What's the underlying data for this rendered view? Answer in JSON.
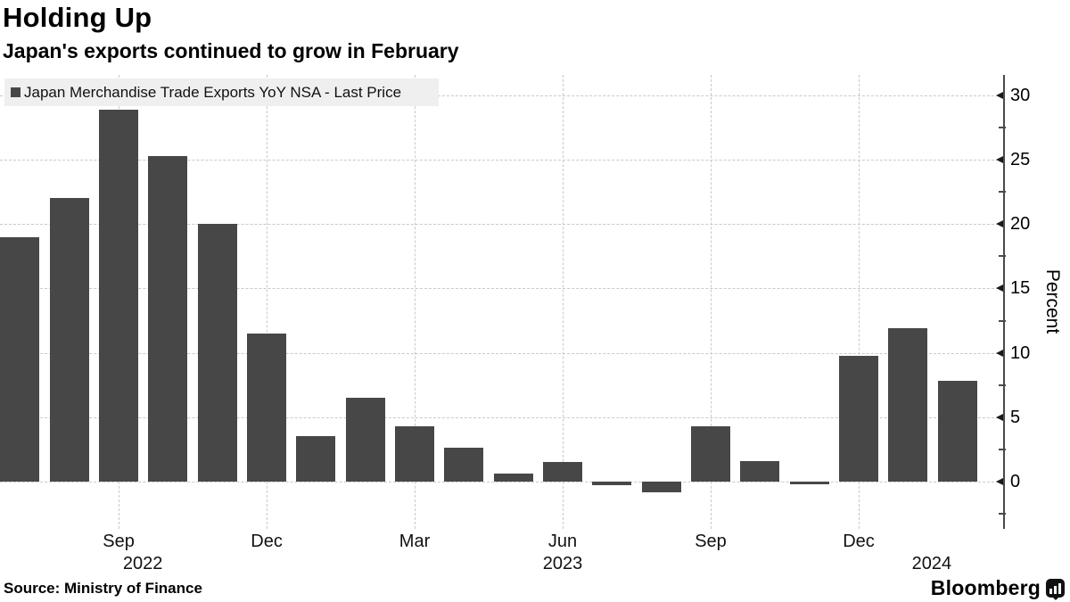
{
  "header": {
    "title": "Holding Up",
    "subtitle": "Japan's exports continued to grow in February"
  },
  "legend": {
    "label": "Japan Merchandise Trade Exports YoY NSA - Last Price",
    "swatch_color": "#474747"
  },
  "footer": {
    "source": "Source:  Ministry of Finance",
    "brand": "Bloomberg"
  },
  "chart_data": {
    "type": "bar",
    "title": "Holding Up",
    "subtitle": "Japan's exports continued to grow in February",
    "series_name": "Japan Merchandise Trade Exports YoY NSA - Last Price",
    "categories": [
      "Jul 2022",
      "Aug 2022",
      "Sep 2022",
      "Oct 2022",
      "Nov 2022",
      "Dec 2022",
      "Jan 2023",
      "Feb 2023",
      "Mar 2023",
      "Apr 2023",
      "May 2023",
      "Jun 2023",
      "Jul 2023",
      "Aug 2023",
      "Sep 2023",
      "Oct 2023",
      "Nov 2023",
      "Dec 2023",
      "Jan 2024",
      "Feb 2024"
    ],
    "values": [
      19.0,
      22.0,
      28.9,
      25.3,
      20.0,
      11.5,
      3.5,
      6.5,
      4.3,
      2.6,
      0.6,
      1.5,
      -0.3,
      -0.8,
      4.3,
      1.6,
      -0.2,
      9.8,
      11.9,
      7.8
    ],
    "xlabel": "",
    "ylabel": "Percent",
    "yticks": [
      0,
      5,
      10,
      15,
      20,
      25,
      30
    ],
    "yticks_minor": [
      -2.5,
      2.5,
      7.5,
      12.5,
      17.5,
      22.5,
      27.5
    ],
    "ylim": [
      -3.7,
      31.6
    ],
    "xticks": [
      {
        "index": 2,
        "label": "Sep"
      },
      {
        "index": 5,
        "label": "Dec"
      },
      {
        "index": 8,
        "label": "Mar"
      },
      {
        "index": 11,
        "label": "Jun"
      },
      {
        "index": 14,
        "label": "Sep"
      },
      {
        "index": 17,
        "label": "Dec"
      }
    ],
    "year_ticks": [
      {
        "index": 2.49,
        "label": "2022"
      },
      {
        "index": 11.0,
        "label": "2023"
      },
      {
        "index": 18.48,
        "label": "2024"
      }
    ],
    "bar_color": "#474747",
    "grid": true,
    "legend_position": "top-left"
  }
}
